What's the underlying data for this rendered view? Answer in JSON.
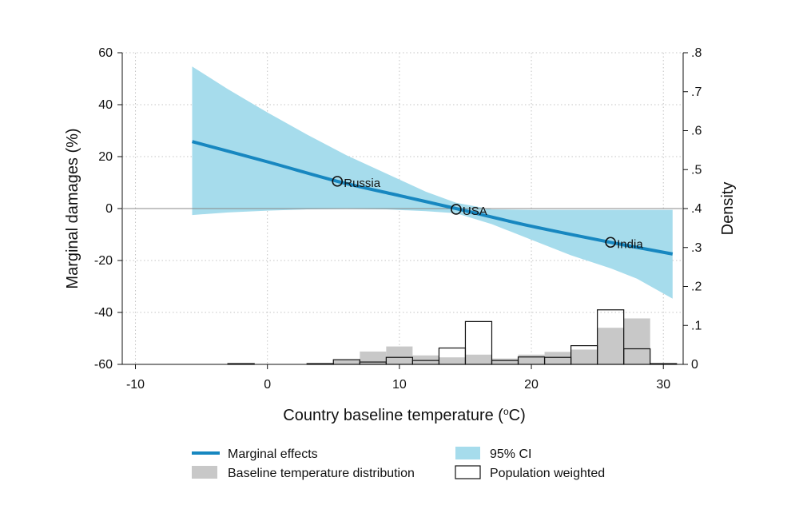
{
  "chart_data": {
    "type": "line",
    "x_axis": {
      "label": "Country baseline temperature (",
      "label_unit": "o",
      "label_suffix": "C)",
      "range": [
        -11,
        31.5
      ],
      "ticks": [
        -10,
        0,
        10,
        20,
        30
      ],
      "tick_labels": [
        "-10",
        "0",
        "10",
        "20",
        "30"
      ]
    },
    "y_axis_left": {
      "label": "Marginal damages (%)",
      "range": [
        -60,
        60
      ],
      "ticks": [
        60,
        40,
        20,
        0,
        -20,
        -40,
        -60
      ],
      "tick_labels": [
        "60",
        "40",
        "20",
        "0",
        "-20",
        "-40",
        "-60"
      ]
    },
    "y_axis_right": {
      "label": "Density",
      "range": [
        0,
        0.8
      ],
      "ticks": [
        0.8,
        0.7,
        0.6,
        0.5,
        0.4,
        0.3,
        0.2,
        0.1,
        0
      ],
      "tick_labels": [
        ".8",
        ".7",
        ".6",
        ".5",
        ".4",
        ".3",
        ".2",
        ".1",
        "0"
      ]
    },
    "grid": true,
    "colors": {
      "line": "#1787c0",
      "ci": "#a6dcec",
      "hist": "#c8c8c8",
      "pop": "#111111"
    },
    "marginal_effects": {
      "x": [
        -5.7,
        0,
        5.3,
        10,
        14.3,
        20,
        26,
        30.7
      ],
      "y": [
        25.8,
        18,
        10.5,
        5,
        0,
        -6.8,
        -13,
        -17.5
      ]
    },
    "ci95": {
      "x": [
        -5.7,
        -3,
        0,
        3,
        6,
        9,
        12,
        14.3,
        17,
        20,
        23,
        26,
        28,
        30.7
      ],
      "upper": [
        54.7,
        46,
        37,
        28.5,
        20.5,
        13.5,
        6.5,
        2.2,
        -0.3,
        -0.5,
        -0.5,
        -0.5,
        -0.5,
        -0.5
      ],
      "lower": [
        -2.5,
        -1.5,
        -0.8,
        -0.3,
        -0.2,
        -0.3,
        -1,
        -1.8,
        -6,
        -12,
        -18,
        -23,
        -27,
        -34.7
      ]
    },
    "points": [
      {
        "name": "Russia",
        "x": 5.3,
        "y": 10.5
      },
      {
        "name": "USA",
        "x": 14.3,
        "y": -0.3
      },
      {
        "name": "India",
        "x": 26,
        "y": -13
      }
    ],
    "baseline_distribution": {
      "x0": [
        -3,
        3,
        5,
        7,
        9,
        11,
        13,
        15,
        17,
        19,
        21,
        23,
        25,
        27,
        29
      ],
      "x1": [
        -1,
        5,
        7,
        9,
        11,
        13,
        15,
        17,
        19,
        21,
        23,
        25,
        27,
        29,
        31
      ],
      "density": [
        0.002,
        0.002,
        0.012,
        0.033,
        0.046,
        0.023,
        0.018,
        0.025,
        0.015,
        0.025,
        0.032,
        0.038,
        0.094,
        0.118,
        0.002
      ]
    },
    "population_weighted": {
      "x0": [
        -3,
        3,
        5,
        7,
        9,
        11,
        13,
        15,
        17,
        19,
        21,
        23,
        25,
        27,
        29
      ],
      "x1": [
        -1,
        5,
        7,
        9,
        11,
        13,
        15,
        17,
        19,
        21,
        23,
        25,
        27,
        29,
        31
      ],
      "density": [
        0.002,
        0.002,
        0.012,
        0.006,
        0.018,
        0.01,
        0.042,
        0.11,
        0.01,
        0.019,
        0.018,
        0.048,
        0.14,
        0.04,
        0.002
      ]
    },
    "legend": {
      "placement": "bottom",
      "items": [
        {
          "key": "marginal_effects",
          "label": "Marginal effects"
        },
        {
          "key": "ci95",
          "label": "95% CI"
        },
        {
          "key": "baseline_distribution",
          "label": "Baseline temperature distribution"
        },
        {
          "key": "population_weighted",
          "label": "Population weighted"
        }
      ]
    }
  }
}
